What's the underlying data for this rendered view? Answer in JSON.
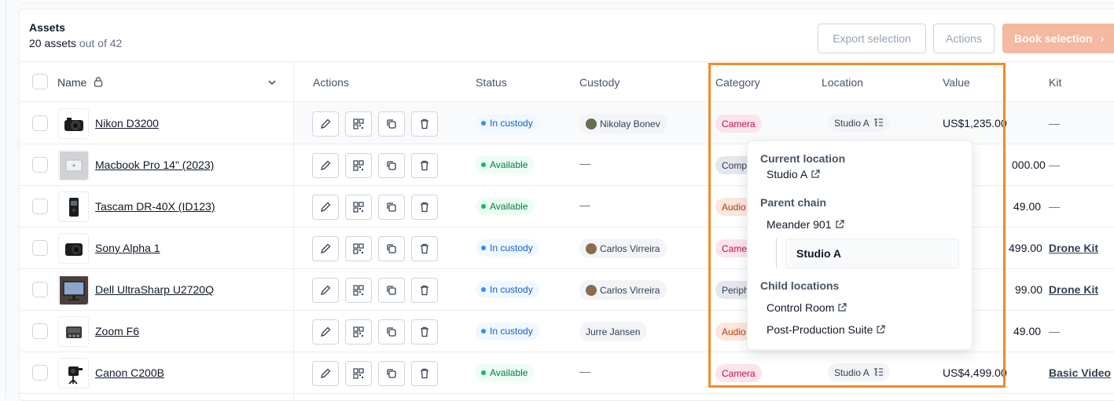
{
  "header": {
    "title": "Assets",
    "count_shown": "20 assets",
    "count_total": "out of 42",
    "export_label": "Export selection",
    "actions_label": "Actions",
    "book_label": "Book selection"
  },
  "columns": {
    "name": "Name",
    "actions": "Actions",
    "status": "Status",
    "custody": "Custody",
    "category": "Category",
    "location": "Location",
    "value": "Value",
    "kit": "Kit"
  },
  "rows": [
    {
      "name": "Nikon D3200",
      "status": "In custody",
      "custody": "Nikolay Bonev",
      "category": "Camera",
      "location": "Studio A",
      "value": "US$1,235.00",
      "kit": "—"
    },
    {
      "name": "Macbook Pro 14\" (2023)",
      "status": "Available",
      "custody": "—",
      "category": "Comp",
      "location": "",
      "value": "000.00",
      "kit": "—"
    },
    {
      "name": "Tascam DR-40X (ID123)",
      "status": "Available",
      "custody": "—",
      "category": "Audio",
      "location": "",
      "value": "49.00",
      "kit": "—"
    },
    {
      "name": "Sony Alpha 1",
      "status": "In custody",
      "custody": "Carlos Virreira",
      "category": "Came",
      "location": "",
      "value": "499.00",
      "kit": "Drone Kit"
    },
    {
      "name": "Dell UltraSharp U2720Q",
      "status": "In custody",
      "custody": "Carlos Virreira",
      "category": "Periph",
      "location": "",
      "value": "99.00",
      "kit": "Drone Kit"
    },
    {
      "name": "Zoom F6",
      "status": "In custody",
      "custody": "Jurre Jansen",
      "category": "Audio",
      "location": "",
      "value": "49.00",
      "kit": "—"
    },
    {
      "name": "Canon C200B",
      "status": "Available",
      "custody": "—",
      "category": "Camera",
      "location": "Studio A",
      "value": "US$4,499.00",
      "kit": "Basic Video"
    }
  ],
  "popover": {
    "current_heading": "Current location",
    "current_value": "Studio A",
    "parent_heading": "Parent chain",
    "parent_value": "Meander 901",
    "selected_value": "Studio A",
    "child_heading": "Child locations",
    "children": [
      "Control Room",
      "Post-Production Suite"
    ]
  },
  "colors": {
    "highlight_border": "#f08c28",
    "primary_button": "#f5b8a0",
    "camera_badge_bg": "#fbe4ec",
    "audio_badge_bg": "#fbe7dc",
    "neutral_badge_bg": "#e4e7ec"
  }
}
